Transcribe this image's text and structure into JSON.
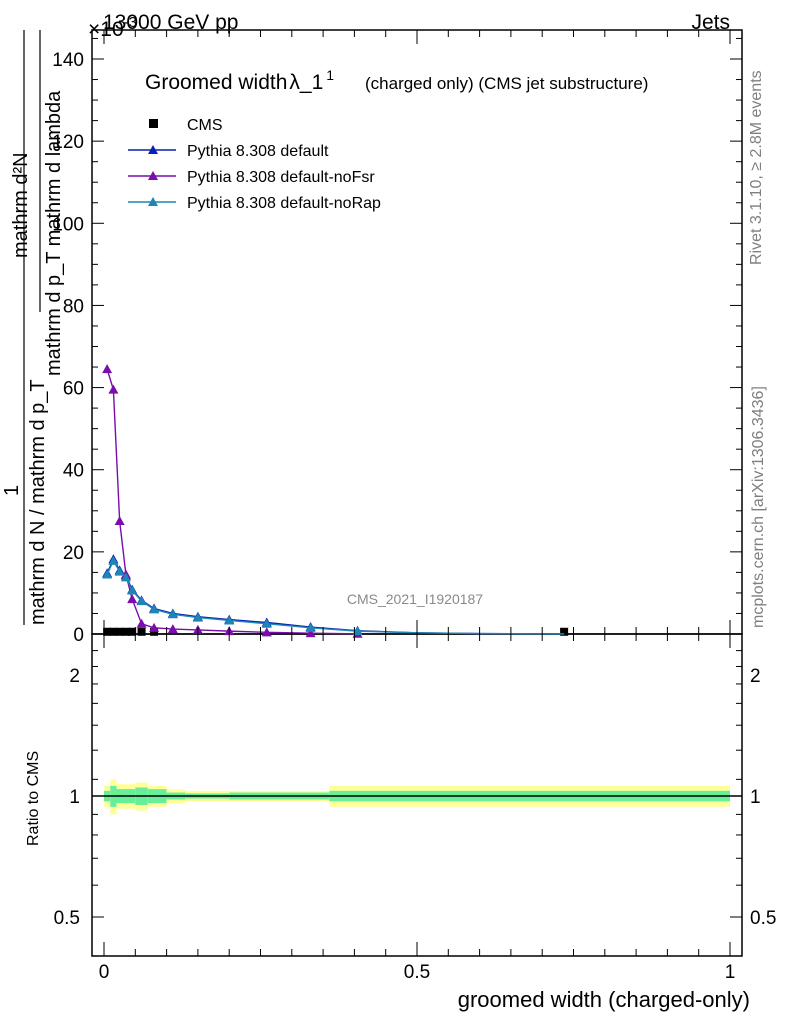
{
  "header": {
    "left": "13000 GeV pp",
    "right": "Jets",
    "exponent_x": "×10",
    "exponent_pow": "-3"
  },
  "side_labels": {
    "rivet": "Rivet 3.1.10, ≥ 2.8M events",
    "mcplots": "mcplots.cern.ch [arXiv:1306.3436]"
  },
  "watermark": "CMS_2021_I1920187",
  "title": {
    "main": "Groomed width",
    "lambda": "λ_1",
    "sup": "1",
    "sub": "(charged only) (CMS jet substructure)"
  },
  "ylabel": {
    "top_num": "mathrm d²N",
    "top_den": "mathrm d p_T mathrm d lambda",
    "bottom_num": "1",
    "bottom_den": "mathrm d N / mathrm d p_T"
  },
  "ratio_ylabel": "Ratio to CMS",
  "xlabel": "groomed width (charged-only)",
  "colors": {
    "cms": "#000000",
    "default": "#0a1fb4",
    "noFsr": "#7a0dab",
    "noRap": "#1d86b5",
    "band_outer": "#ffff99",
    "band_inner": "#66ee99"
  },
  "chart_data": {
    "type": "line",
    "xlim": [
      0,
      1
    ],
    "ylim": [
      0,
      0.146
    ],
    "y_multiplier": "×10^-3",
    "x_ticks": [
      "0",
      "0.5",
      "1"
    ],
    "y_ticks": [
      "0",
      "20",
      "40",
      "60",
      "80",
      "100",
      "120",
      "140"
    ],
    "ratio_ylim": [
      0.4,
      2.4
    ],
    "ratio_y_ticks": [
      "0.5",
      "1",
      "2"
    ],
    "legend": [
      "CMS",
      "Pythia 8.308 default",
      "Pythia 8.308 default-noFsr",
      "Pythia 8.308 default-noRap"
    ],
    "series": [
      {
        "name": "CMS",
        "x": [
          0.005,
          0.015,
          0.025,
          0.035,
          0.045,
          0.06,
          0.08,
          0.735
        ],
        "y": [
          0.0003,
          0.0003,
          0.0003,
          0.0003,
          0.0003,
          0.0003,
          0.0003,
          0.0003
        ]
      },
      {
        "name": "Pythia 8.308 default",
        "x": [
          0.005,
          0.015,
          0.025,
          0.035,
          0.045,
          0.06,
          0.08,
          0.11,
          0.15,
          0.2,
          0.26,
          0.33,
          0.405,
          0.5,
          0.6,
          0.7,
          0.735
        ],
        "y": [
          0.0148,
          0.0182,
          0.0155,
          0.0142,
          0.0108,
          0.0082,
          0.0062,
          0.005,
          0.0042,
          0.0035,
          0.0028,
          0.0017,
          0.0008,
          0.0003,
          0.0001,
          5e-05,
          3e-05
        ]
      },
      {
        "name": "Pythia 8.308 default-noFsr",
        "x": [
          0.005,
          0.015,
          0.025,
          0.035,
          0.045,
          0.06,
          0.08,
          0.11,
          0.15,
          0.2,
          0.26,
          0.33,
          0.405
        ],
        "y": [
          0.0645,
          0.0595,
          0.0275,
          0.0145,
          0.0085,
          0.0025,
          0.0015,
          0.0012,
          0.001,
          0.0007,
          0.0004,
          0.0002,
          5e-05
        ]
      },
      {
        "name": "Pythia 8.308 default-noRap",
        "x": [
          0.005,
          0.015,
          0.025,
          0.035,
          0.045,
          0.06,
          0.08,
          0.11,
          0.15,
          0.2,
          0.26,
          0.33,
          0.405,
          0.5,
          0.6,
          0.7,
          0.735
        ],
        "y": [
          0.0145,
          0.0178,
          0.0152,
          0.0138,
          0.0106,
          0.008,
          0.006,
          0.0048,
          0.004,
          0.0033,
          0.0025,
          0.0015,
          0.0007,
          0.0003,
          0.0001,
          5e-05,
          3e-05
        ]
      }
    ],
    "ratio_band": {
      "edges": [
        0,
        0.01,
        0.02,
        0.05,
        0.07,
        0.1,
        0.13,
        0.2,
        0.36,
        1.0
      ],
      "inner": [
        0.03,
        0.06,
        0.04,
        0.05,
        0.04,
        0.02,
        0.015,
        0.02,
        0.03
      ],
      "outer": [
        0.06,
        0.1,
        0.07,
        0.08,
        0.06,
        0.04,
        0.03,
        0.03,
        0.06
      ]
    }
  }
}
